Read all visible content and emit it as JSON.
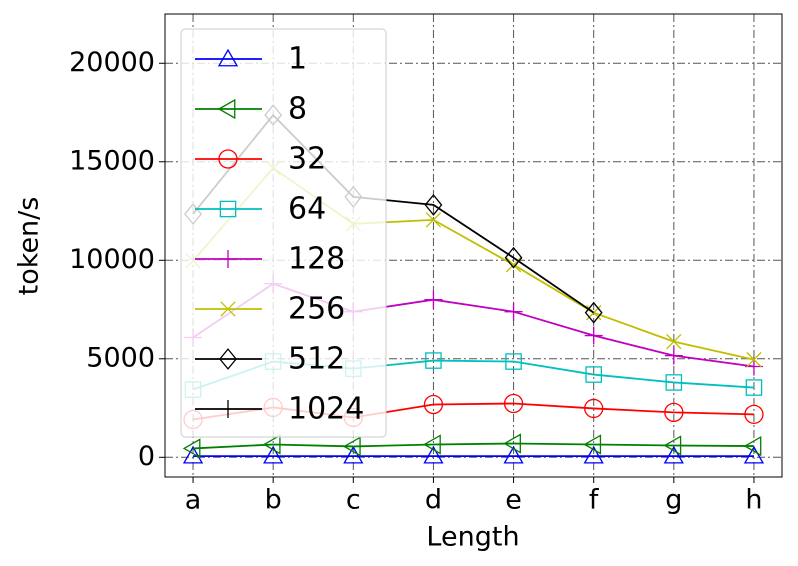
{
  "chart_data": {
    "type": "line",
    "x_label": "Length",
    "y_label": "token/s",
    "categories": [
      "a",
      "b",
      "c",
      "d",
      "e",
      "f",
      "g",
      "h"
    ],
    "series": [
      {
        "name": "1",
        "color": "#0000ff",
        "marker": "^",
        "values": [
          60,
          60,
          60,
          60,
          60,
          60,
          60,
          60
        ]
      },
      {
        "name": "8",
        "color": "#008000",
        "marker": "<",
        "values": [
          450,
          650,
          550,
          650,
          700,
          650,
          600,
          570
        ]
      },
      {
        "name": "32",
        "color": "#ff0000",
        "marker": "o",
        "values": [
          1920,
          2530,
          2020,
          2680,
          2730,
          2480,
          2280,
          2180
        ]
      },
      {
        "name": "64",
        "color": "#00bfbf",
        "marker": "s",
        "values": [
          3440,
          4860,
          4500,
          4910,
          4860,
          4200,
          3800,
          3540
        ]
      },
      {
        "name": "128",
        "color": "#bf00bf",
        "marker": "+",
        "values": [
          6080,
          8810,
          7390,
          8000,
          7390,
          6180,
          5160,
          4610
        ]
      },
      {
        "name": "256",
        "color": "#bfbf00",
        "marker": "x",
        "values": [
          9970,
          14680,
          11850,
          12050,
          9770,
          7340,
          5870,
          4960
        ]
      },
      {
        "name": "512",
        "color": "#000000",
        "marker": "D",
        "values": [
          12350,
          17370,
          13220,
          12810,
          10130,
          7340,
          null,
          null
        ]
      },
      {
        "name": "1024",
        "color": "#000000",
        "marker": "|",
        "values": [
          null,
          null,
          null,
          null,
          null,
          null,
          null,
          null
        ]
      }
    ],
    "xlim": [
      -0.35,
      7.35
    ],
    "ylim": [
      -1000,
      22500
    ],
    "yticks": [
      0,
      5000,
      10000,
      15000,
      20000
    ],
    "grid": true,
    "legend": "upper left"
  }
}
